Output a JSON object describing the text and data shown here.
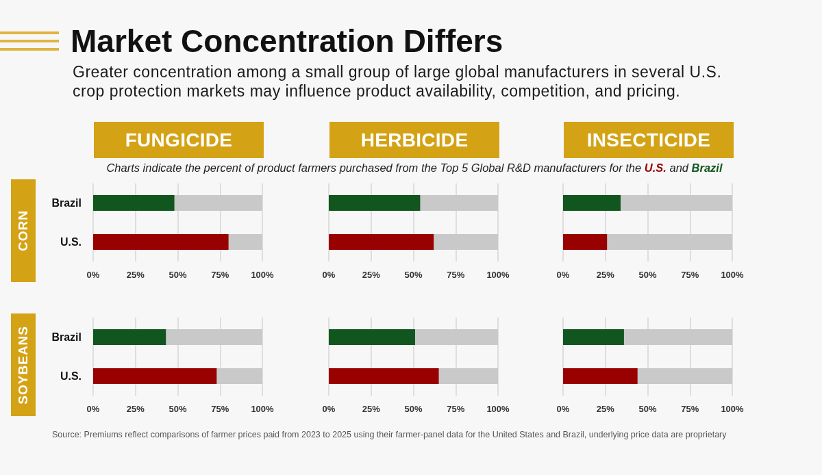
{
  "chart_data": [
    {
      "type": "other",
      "title": "Market Concentration Differs",
      "subtitle": "Greater concentration among a small group of large global manufacturers in several U.S. crop protection markets may influence product availability, competition, and pricing.",
      "annotations": [
        "Charts indicate the percent of product farmers purchased from the Top 5 Global R&D manufacturers for the U.S. and Brazil",
        "Source: Premiums reflect comparisons of farmer prices paid from 2023 to 2025 using their farmer-panel data for the United States and Brazil, underlying price data are proprietary"
      ]
    },
    {
      "type": "bar",
      "orientation": "horizontal",
      "title": "FUNGICIDE",
      "ylabel": "CORN",
      "categories": [
        "Brazil",
        "U.S."
      ],
      "values": [
        48,
        80
      ],
      "colors": [
        "#12561f",
        "#990000"
      ],
      "xlim": [
        0,
        100
      ],
      "xticks": [
        {
          "value": 0,
          "label": "0%"
        },
        {
          "value": 25,
          "label": "25%"
        },
        {
          "value": 50,
          "label": "50%"
        },
        {
          "value": 75,
          "label": "75%"
        },
        {
          "value": 100,
          "label": "100%"
        }
      ],
      "grid": "x"
    },
    {
      "type": "bar",
      "orientation": "horizontal",
      "title": "HERBICIDE",
      "categories": [
        null,
        null
      ],
      "values": [
        54,
        62
      ],
      "colors": [
        "#12561f",
        "#990000"
      ],
      "xlim": [
        0,
        100
      ],
      "xticks": [
        {
          "value": 0,
          "label": "0%"
        },
        {
          "value": 25,
          "label": "25%"
        },
        {
          "value": 50,
          "label": "50%"
        },
        {
          "value": 75,
          "label": "75%"
        },
        {
          "value": 100,
          "label": "100%"
        }
      ],
      "grid": "x",
      "tick_labels": "x"
    },
    {
      "type": "bar",
      "orientation": "horizontal",
      "title": "INSECTICIDE",
      "categories": [
        null,
        null
      ],
      "values": [
        34,
        26
      ],
      "colors": [
        "#12561f",
        "#990000"
      ],
      "xlim": [
        0,
        100
      ],
      "xticks": [
        {
          "value": 0,
          "label": "0%"
        },
        {
          "value": 25,
          "label": "25%"
        },
        {
          "value": 50,
          "label": "50%"
        },
        {
          "value": 75,
          "label": "75%"
        },
        {
          "value": 100,
          "label": "100%"
        }
      ],
      "grid": "x",
      "tick_labels": "x"
    },
    {
      "type": "bar",
      "orientation": "horizontal",
      "ylabel": "SOYBEANS",
      "categories": [
        "Brazil",
        "U.S."
      ],
      "values": [
        43,
        73
      ],
      "colors": [
        "#12561f",
        "#990000"
      ],
      "xlim": [
        0,
        100
      ],
      "xticks": [
        {
          "value": 0,
          "label": "0%"
        },
        {
          "value": 25,
          "label": "25%"
        },
        {
          "value": 50,
          "label": "50%"
        },
        {
          "value": 75,
          "label": "75%"
        },
        {
          "value": 100,
          "label": "100%"
        }
      ],
      "grid": "x"
    },
    {
      "type": "bar",
      "orientation": "horizontal",
      "categories": [
        null,
        null
      ],
      "values": [
        51,
        65
      ],
      "colors": [
        "#12561f",
        "#990000"
      ],
      "xlim": [
        0,
        100
      ],
      "xticks": [
        {
          "value": 0,
          "label": "0%"
        },
        {
          "value": 25,
          "label": "25%"
        },
        {
          "value": 50,
          "label": "50%"
        },
        {
          "value": 75,
          "label": "75%"
        },
        {
          "value": 100,
          "label": "100%"
        }
      ],
      "grid": "x",
      "tick_labels": "x"
    },
    {
      "type": "bar",
      "orientation": "horizontal",
      "categories": [
        null,
        null
      ],
      "values": [
        36,
        44
      ],
      "colors": [
        "#12561f",
        "#990000"
      ],
      "xlim": [
        0,
        100
      ],
      "xticks": [
        {
          "value": 0,
          "label": "0%"
        },
        {
          "value": 25,
          "label": "25%"
        },
        {
          "value": 50,
          "label": "50%"
        },
        {
          "value": 75,
          "label": "75%"
        },
        {
          "value": 100,
          "label": "100%"
        }
      ],
      "grid": "x",
      "tick_labels": "x"
    }
  ]
}
